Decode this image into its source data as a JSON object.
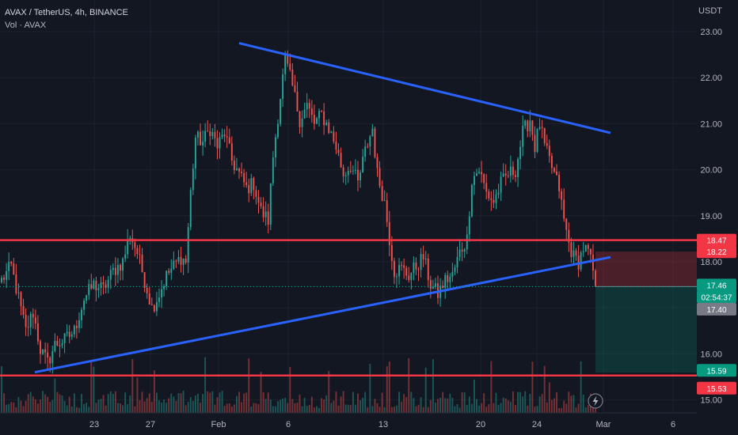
{
  "legend": {
    "symbol_line": "AVAX / TetherUS, 4h, BINANCE",
    "volume_line": "Vol · AVAX"
  },
  "axis": {
    "currency": "USDT"
  },
  "colors": {
    "background": "#131722",
    "up": "#26a69a",
    "down": "#ef5350",
    "trendline": "#2962ff",
    "level": "#f23645",
    "grid": "#1e222d"
  },
  "chart_data": {
    "type": "candlestick",
    "y_ticks": [
      "23.00",
      "22.00",
      "21.00",
      "20.00",
      "19.00",
      "18.00",
      "16.00",
      "15.00"
    ],
    "x_ticks": [
      "23",
      "27",
      "Feb",
      "6",
      "13",
      "20",
      "24",
      "Mar",
      "6"
    ],
    "ylim": [
      14.9,
      23.3
    ],
    "grid": true,
    "horizontal_levels": [
      18.47,
      15.53
    ],
    "trendlines": [
      {
        "name": "descending resistance",
        "from": {
          "x": "Feb 2",
          "y": 22.75
        },
        "to": {
          "x": "Feb 29",
          "y": 20.8
        }
      },
      {
        "name": "ascending support",
        "from": {
          "x": "Jan 19",
          "y": 15.6
        },
        "to": {
          "x": "Feb 29",
          "y": 18.1
        }
      }
    ],
    "position_tool": {
      "entry": 17.46,
      "stop": 18.22,
      "target": 15.59
    },
    "price_tags": [
      {
        "value": "18.47",
        "kind": "red"
      },
      {
        "value": "18.22",
        "kind": "red"
      },
      {
        "value": "17.46",
        "kind": "teal"
      },
      {
        "value": "02:54:37",
        "kind": "teal"
      },
      {
        "value": "17.40",
        "kind": "gray"
      },
      {
        "value": "15.59",
        "kind": "teal"
      },
      {
        "value": "15.53",
        "kind": "red"
      }
    ],
    "last_price": 17.46,
    "bar_count": 246,
    "anchors": [
      [
        0,
        17.5
      ],
      [
        4,
        18.0
      ],
      [
        8,
        17.3
      ],
      [
        10,
        16.6
      ],
      [
        14,
        17.0
      ],
      [
        18,
        16.0
      ],
      [
        22,
        15.8
      ],
      [
        26,
        15.75
      ],
      [
        30,
        16.3
      ],
      [
        36,
        16.4
      ],
      [
        42,
        16.5
      ],
      [
        48,
        17.5
      ],
      [
        54,
        17.8
      ],
      [
        60,
        17.6
      ],
      [
        66,
        18.2
      ],
      [
        72,
        17.9
      ],
      [
        76,
        18.8
      ],
      [
        80,
        18.3
      ],
      [
        86,
        17.7
      ],
      [
        90,
        17.2
      ],
      [
        94,
        17.0
      ],
      [
        98,
        17.6
      ],
      [
        104,
        18.0
      ],
      [
        110,
        18.1
      ],
      [
        116,
        18.2
      ],
      [
        120,
        19.5
      ],
      [
        124,
        20.5
      ],
      [
        128,
        21.0
      ],
      [
        132,
        20.7
      ],
      [
        136,
        20.8
      ],
      [
        140,
        21.1
      ],
      [
        146,
        20.5
      ],
      [
        150,
        20.0
      ],
      [
        156,
        19.7
      ],
      [
        160,
        19.5
      ],
      [
        164,
        19.0
      ],
      [
        168,
        18.8
      ],
      [
        172,
        20.2
      ],
      [
        176,
        21.2
      ],
      [
        180,
        22.0
      ],
      [
        184,
        22.4
      ],
      [
        188,
        21.6
      ],
      [
        192,
        21.0
      ],
      [
        198,
        20.9
      ],
      [
        202,
        21.2
      ],
      [
        206,
        20.7
      ]
    ]
  }
}
